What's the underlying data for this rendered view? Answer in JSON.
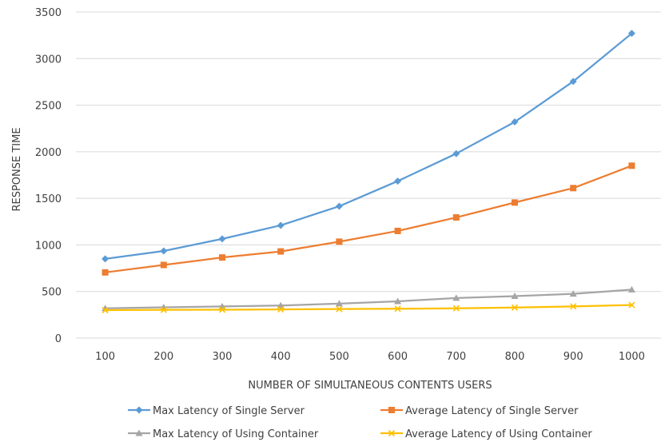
{
  "chart_data": {
    "type": "line",
    "title": "",
    "xlabel": "NUMBER OF SIMULTANEOUS CONTENTS USERS",
    "ylabel": "RESPONSE TIME",
    "categories": [
      "100",
      "200",
      "300",
      "400",
      "500",
      "600",
      "700",
      "800",
      "900",
      "1000"
    ],
    "ylim": [
      0,
      3500
    ],
    "yticks": [
      "0",
      "500",
      "1000",
      "1500",
      "2000",
      "2500",
      "3000",
      "3500"
    ],
    "grid": true,
    "legend_position": "bottom",
    "series": [
      {
        "name": "Max Latency of Single Server",
        "color": "#5B9BD5",
        "marker": "diamond",
        "values": [
          850,
          935,
          1065,
          1210,
          1415,
          1685,
          1980,
          2320,
          2755,
          3270
        ]
      },
      {
        "name": "Average Latency of Single Server",
        "color": "#ED7D31",
        "marker": "square",
        "values": [
          705,
          785,
          865,
          930,
          1035,
          1150,
          1295,
          1455,
          1610,
          1850
        ]
      },
      {
        "name": "Max Latency of Using Container",
        "color": "#A5A5A5",
        "marker": "triangle",
        "values": [
          320,
          330,
          340,
          350,
          370,
          395,
          430,
          450,
          475,
          520
        ]
      },
      {
        "name": "Average Latency of Using Container",
        "color": "#FFC000",
        "marker": "x",
        "values": [
          300,
          303,
          305,
          308,
          312,
          315,
          320,
          328,
          340,
          355
        ]
      }
    ]
  }
}
